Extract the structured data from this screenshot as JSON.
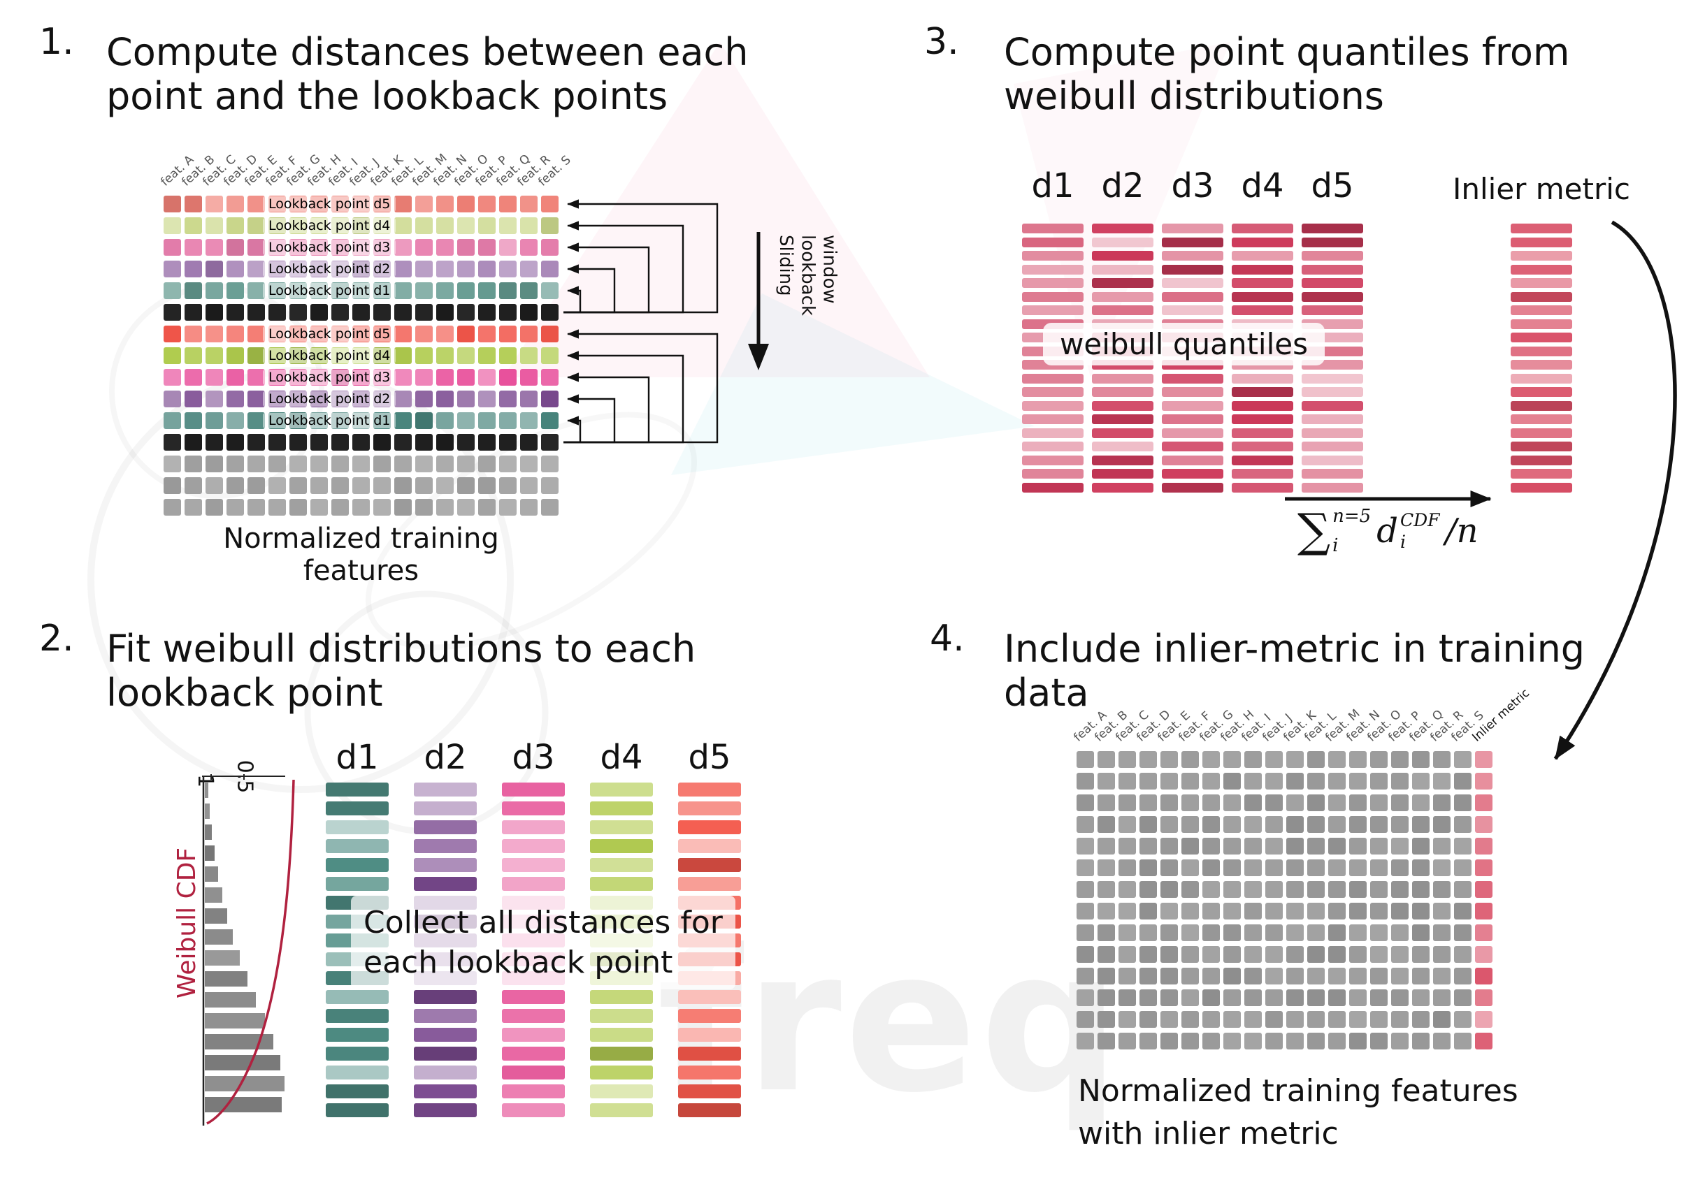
{
  "colors": {
    "ink": "#111111",
    "black_row": "#1b1b1b",
    "gray_cell": "#9c9c9c",
    "quantile_base": "#ce3a5b",
    "inlier_base": "#d94f66",
    "cdf_curve": "#b0213f"
  },
  "watermark": {
    "text": "freq"
  },
  "panel1": {
    "number": "1.",
    "title": [
      "Compute distances between each",
      "point and the lookback points"
    ],
    "features": [
      "feat. A",
      "feat. B",
      "feat. C",
      "feat. D",
      "feat. E",
      "feat. F",
      "feat. G",
      "feat. H",
      "feat. I",
      "feat. J",
      "feat. K",
      "feat. L",
      "feat. M",
      "feat. N",
      "feat. O",
      "feat. P",
      "feat. Q",
      "feat. R",
      "feat. S"
    ],
    "rows": [
      {
        "label": "Lookback point d5",
        "color": "#ef8076",
        "vary": 0.42
      },
      {
        "label": "Lookback point d4",
        "color": "#ccd98d",
        "vary": 0.38
      },
      {
        "label": "Lookback point d3",
        "color": "#e87fae",
        "vary": 0.42
      },
      {
        "label": "Lookback point d2",
        "color": "#9b74ad",
        "vary": 0.42
      },
      {
        "label": "Lookback point d1",
        "color": "#649a90",
        "vary": 0.42
      },
      {
        "color": "#1b1b1b",
        "vary": 0.06
      },
      {
        "label": "Lookback point d5",
        "color": "#f1564a",
        "vary": 0.5
      },
      {
        "label": "Lookback point d4",
        "color": "#afcb4d",
        "vary": 0.5
      },
      {
        "label": "Lookback point d3",
        "color": "#e84f9b",
        "vary": 0.5
      },
      {
        "label": "Lookback point d2",
        "color": "#7c4b91",
        "vary": 0.5
      },
      {
        "label": "Lookback point d1",
        "color": "#47837b",
        "vary": 0.5
      },
      {
        "color": "#1b1b1b",
        "vary": 0.06
      },
      {
        "color": "#a2a2a2",
        "vary": 0.22
      },
      {
        "color": "#a2a2a2",
        "vary": 0.22
      },
      {
        "color": "#a2a2a2",
        "vary": 0.22
      }
    ],
    "sliding_label": [
      "Sliding",
      "lookback",
      "window"
    ],
    "caption": "Normalized training features"
  },
  "panel2": {
    "number": "2.",
    "title": [
      "Fit weibull distributions to each",
      "lookback point"
    ],
    "plot": {
      "ylabel": "Weibull CDF",
      "ticks": [
        "1",
        "0.5"
      ],
      "hist": [
        5,
        7,
        10,
        14,
        19,
        25,
        32,
        40,
        50,
        61,
        73,
        86,
        98,
        108,
        114,
        110
      ]
    },
    "columns": [
      {
        "label": "d1",
        "color": "#4f8d84"
      },
      {
        "label": "d2",
        "color": "#7c4b91"
      },
      {
        "label": "d3",
        "color": "#e85f9f"
      },
      {
        "label": "d4",
        "color": "#b3cc52"
      },
      {
        "label": "d5",
        "color": "#f3574a"
      }
    ],
    "bars_per_column": 18,
    "overlay": [
      "Collect all distances for",
      "each lookback point"
    ]
  },
  "panel3": {
    "number": "3.",
    "title": [
      "Compute point quantiles from",
      "weibull distributions"
    ],
    "column_labels": [
      "d1",
      "d2",
      "d3",
      "d4",
      "d5"
    ],
    "bars_per_column": 20,
    "overlay": "weibull quantiles",
    "inlier_label": "Inlier metric",
    "formula": {
      "sum": "∑",
      "sup": "n=5",
      "sub": "i",
      "term": "d",
      "term_sup": "CDF",
      "term_sub": "i",
      "tail": "/n"
    }
  },
  "panel4": {
    "number": "4.",
    "title": [
      "Include inlier-metric in training",
      "data"
    ],
    "features": [
      "feat. A",
      "feat. B",
      "feat. C",
      "feat. D",
      "feat. E",
      "feat. F",
      "feat. G",
      "feat. H",
      "feat. I",
      "feat. J",
      "feat. K",
      "feat. L",
      "feat. M",
      "feat. N",
      "feat. O",
      "feat. P",
      "feat. Q",
      "feat. R",
      "feat. S"
    ],
    "inlier_header": "Inlier metric",
    "rows": 14,
    "caption": [
      "Normalized training features",
      "with inlier metric"
    ]
  }
}
